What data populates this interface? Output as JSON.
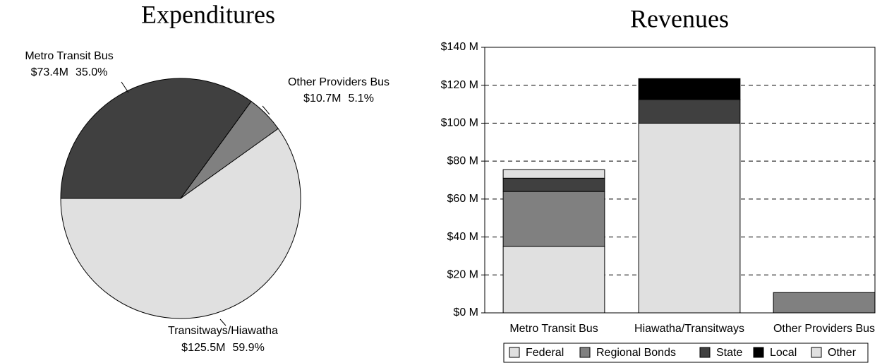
{
  "chart_data": [
    {
      "type": "pie",
      "title": "Expenditures",
      "categories": [
        "Metro Transit Bus",
        "Other Providers Bus",
        "Transitways/Hiawatha"
      ],
      "values": [
        73.4,
        10.7,
        125.5
      ],
      "value_labels": [
        "$73.4M",
        "$10.7M",
        "$125.5M"
      ],
      "percent_labels": [
        "35.0%",
        "5.1%",
        "59.9%"
      ],
      "colors": [
        "#404040",
        "#808080",
        "#e0e0e0"
      ]
    },
    {
      "type": "stacked_bar",
      "title": "Revenues",
      "categories": [
        "Metro Transit Bus",
        "Hiawatha/Transitways",
        "Other Providers Bus"
      ],
      "series": [
        {
          "name": "Federal",
          "color": "#e0e0e0",
          "values": [
            35,
            100,
            0
          ]
        },
        {
          "name": "Regional Bonds",
          "color": "#808080",
          "values": [
            29,
            0,
            10.7
          ]
        },
        {
          "name": "State",
          "color": "#404040",
          "values": [
            7,
            12.5,
            0
          ]
        },
        {
          "name": "Local",
          "color": "#000000",
          "values": [
            0,
            11,
            0
          ]
        },
        {
          "name": "Other",
          "color": "#e0e0e0",
          "values": [
            4.5,
            0,
            0
          ]
        }
      ],
      "ylim": [
        0,
        140
      ],
      "yticks": [
        {
          "value": 0,
          "label": "$0 M"
        },
        {
          "value": 20,
          "label": "$20 M"
        },
        {
          "value": 40,
          "label": "$40 M"
        },
        {
          "value": 60,
          "label": "$60 M"
        },
        {
          "value": 80,
          "label": "$80 M"
        },
        {
          "value": 100,
          "label": "$100 M"
        },
        {
          "value": 120,
          "label": "$120 M"
        },
        {
          "value": 140,
          "label": "$140 M"
        }
      ],
      "grid": true,
      "legend": "bottom"
    }
  ]
}
